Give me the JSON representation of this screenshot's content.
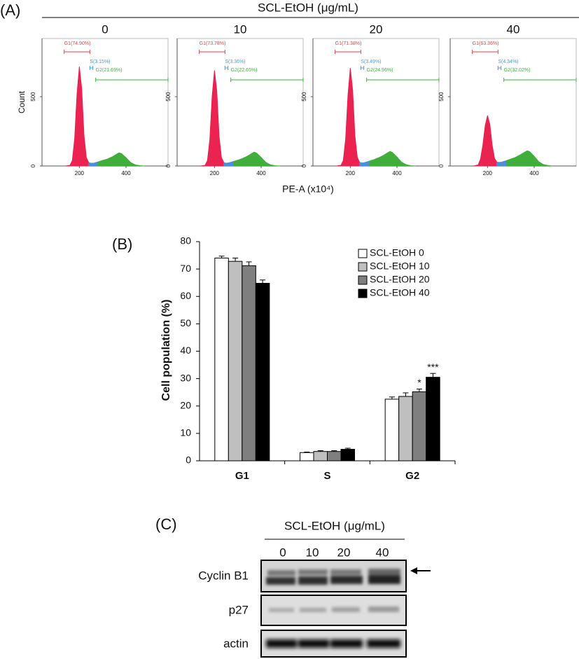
{
  "panel_labels": [
    "(A)",
    "(B)",
    "(C)"
  ],
  "panel_a": {
    "title": "SCL-EtOH (μg/mL)",
    "xlabel": "PE-A (x10⁴)"
  },
  "chart_data": [
    {
      "type": "area",
      "title": "0",
      "ylabel": "Count",
      "x": [
        140,
        160,
        170,
        180,
        190,
        200,
        210,
        220,
        230,
        240,
        250,
        260,
        280,
        300,
        320,
        340,
        360,
        370,
        380,
        400,
        420,
        440,
        460,
        480
      ],
      "xlim": [
        40,
        580
      ],
      "ylim": [
        0,
        920
      ],
      "xticks": [
        200,
        400
      ],
      "yticks": [
        0,
        500
      ],
      "series": [
        {
          "color": "#ea2351",
          "values": [
            0,
            5,
            40,
            200,
            520,
            717,
            560,
            220,
            60,
            25,
            null,
            null,
            null,
            null,
            null,
            null,
            null,
            null,
            null,
            null,
            null,
            null,
            null,
            null
          ]
        },
        {
          "color": "#4b8fd6",
          "values": [
            null,
            null,
            null,
            null,
            null,
            null,
            null,
            null,
            null,
            25,
            20,
            20,
            30,
            null,
            null,
            null,
            null,
            null,
            null,
            null,
            null,
            null,
            null,
            null
          ]
        },
        {
          "color": "#3fae3a",
          "values": [
            null,
            null,
            null,
            null,
            null,
            null,
            null,
            null,
            null,
            null,
            null,
            null,
            30,
            40,
            50,
            65,
            85,
            95,
            90,
            60,
            25,
            8,
            2,
            0
          ]
        }
      ],
      "gates": [
        {
          "label": "G1(74.90%)",
          "range": [
            135,
            245
          ],
          "color": "#e8403f"
        },
        {
          "label": "S(3.15%)",
          "range": [
            245,
            258
          ],
          "color": "#3aa0e0"
        },
        {
          "label": "G2(21.69%)",
          "range": [
            270,
            580
          ],
          "color": "#33bb33"
        }
      ]
    },
    {
      "type": "area",
      "title": "10",
      "x": [
        140,
        160,
        170,
        180,
        190,
        200,
        210,
        220,
        230,
        240,
        250,
        260,
        280,
        300,
        320,
        340,
        360,
        370,
        380,
        400,
        420,
        440,
        460,
        480
      ],
      "xlim": [
        40,
        580
      ],
      "ylim": [
        0,
        920
      ],
      "xticks": [
        200,
        400
      ],
      "yticks": [
        0,
        500
      ],
      "series": [
        {
          "color": "#ea2351",
          "values": [
            0,
            5,
            40,
            190,
            500,
            690,
            540,
            210,
            60,
            25,
            null,
            null,
            null,
            null,
            null,
            null,
            null,
            null,
            null,
            null,
            null,
            null,
            null,
            null
          ]
        },
        {
          "color": "#4b8fd6",
          "values": [
            null,
            null,
            null,
            null,
            null,
            null,
            null,
            null,
            null,
            25,
            20,
            22,
            32,
            null,
            null,
            null,
            null,
            null,
            null,
            null,
            null,
            null,
            null,
            null
          ]
        },
        {
          "color": "#3fae3a",
          "values": [
            null,
            null,
            null,
            null,
            null,
            null,
            null,
            null,
            null,
            null,
            null,
            null,
            32,
            42,
            54,
            70,
            90,
            100,
            94,
            62,
            26,
            8,
            2,
            0
          ]
        }
      ],
      "gates": [
        {
          "label": "G1(73.78%)",
          "range": [
            135,
            245
          ],
          "color": "#e8403f"
        },
        {
          "label": "S(3.36%)",
          "range": [
            245,
            258
          ],
          "color": "#3aa0e0"
        },
        {
          "label": "G2(22.65%)",
          "range": [
            270,
            580
          ],
          "color": "#33bb33"
        }
      ]
    },
    {
      "type": "area",
      "title": "20",
      "x": [
        140,
        160,
        170,
        180,
        190,
        200,
        210,
        220,
        230,
        240,
        250,
        260,
        280,
        300,
        320,
        340,
        360,
        370,
        380,
        400,
        420,
        440,
        460,
        480
      ],
      "xlim": [
        40,
        580
      ],
      "ylim": [
        0,
        920
      ],
      "xticks": [
        200,
        400
      ],
      "yticks": [
        0,
        500
      ],
      "series": [
        {
          "color": "#ea2351",
          "values": [
            0,
            5,
            40,
            195,
            510,
            707,
            550,
            215,
            62,
            26,
            null,
            null,
            null,
            null,
            null,
            null,
            null,
            null,
            null,
            null,
            null,
            null,
            null,
            null
          ]
        },
        {
          "color": "#4b8fd6",
          "values": [
            null,
            null,
            null,
            null,
            null,
            null,
            null,
            null,
            null,
            26,
            22,
            24,
            34,
            null,
            null,
            null,
            null,
            null,
            null,
            null,
            null,
            null,
            null,
            null
          ]
        },
        {
          "color": "#3fae3a",
          "values": [
            null,
            null,
            null,
            null,
            null,
            null,
            null,
            null,
            null,
            null,
            null,
            null,
            34,
            45,
            58,
            74,
            95,
            105,
            98,
            65,
            27,
            9,
            2,
            0
          ]
        }
      ],
      "gates": [
        {
          "label": "G1(71.38%)",
          "range": [
            135,
            245
          ],
          "color": "#e8403f"
        },
        {
          "label": "S(3.49%)",
          "range": [
            245,
            258
          ],
          "color": "#3aa0e0"
        },
        {
          "label": "G2(24.96%)",
          "range": [
            270,
            580
          ],
          "color": "#33bb33"
        }
      ]
    },
    {
      "type": "area",
      "title": "40",
      "x": [
        140,
        160,
        170,
        180,
        190,
        200,
        210,
        220,
        230,
        240,
        250,
        260,
        280,
        300,
        320,
        340,
        360,
        370,
        380,
        400,
        420,
        440,
        460,
        480
      ],
      "xlim": [
        40,
        580
      ],
      "ylim": [
        0,
        920
      ],
      "xticks": [
        200,
        400
      ],
      "yticks": [
        0,
        500
      ],
      "series": [
        {
          "color": "#ea2351",
          "values": [
            0,
            8,
            50,
            150,
            290,
            364,
            300,
            150,
            55,
            28,
            null,
            null,
            null,
            null,
            null,
            null,
            null,
            null,
            null,
            null,
            null,
            null,
            null,
            null
          ]
        },
        {
          "color": "#4b8fd6",
          "values": [
            null,
            null,
            null,
            null,
            null,
            null,
            null,
            null,
            null,
            28,
            26,
            28,
            38,
            null,
            null,
            null,
            null,
            null,
            null,
            null,
            null,
            null,
            null,
            null
          ]
        },
        {
          "color": "#3fae3a",
          "values": [
            null,
            null,
            null,
            null,
            null,
            null,
            null,
            null,
            null,
            null,
            null,
            null,
            38,
            50,
            62,
            80,
            100,
            110,
            104,
            70,
            30,
            10,
            3,
            0
          ]
        }
      ],
      "gates": [
        {
          "label": "G1(63.36%)",
          "range": [
            135,
            245
          ],
          "color": "#e8403f"
        },
        {
          "label": "S(4.34%)",
          "range": [
            245,
            258
          ],
          "color": "#3aa0e0"
        },
        {
          "label": "G2(32.02%)",
          "range": [
            270,
            580
          ],
          "color": "#33bb33"
        }
      ]
    },
    {
      "type": "bar",
      "ylabel": "Cell population (%)",
      "categories": [
        "G1",
        "S",
        "G2"
      ],
      "ylim": [
        0,
        80
      ],
      "yticks": [
        0,
        10,
        20,
        30,
        40,
        50,
        60,
        70,
        80
      ],
      "legend": "upper right",
      "series": [
        {
          "name": "SCL-EtOH 0",
          "color": "#ffffff",
          "values": [
            74,
            3,
            22.5
          ],
          "errors": [
            0.7,
            0.2,
            0.8
          ]
        },
        {
          "name": "SCL-EtOH 10",
          "color": "#bfbfbf",
          "values": [
            72.8,
            3.4,
            23.5
          ],
          "errors": [
            1.2,
            0.3,
            1.3
          ]
        },
        {
          "name": "SCL-EtOH 20",
          "color": "#7f7f7f",
          "values": [
            71.2,
            3.4,
            25.2
          ],
          "errors": [
            1.4,
            0.3,
            1.0
          ],
          "labels": [
            null,
            null,
            "*"
          ]
        },
        {
          "name": "SCL-EtOH 40",
          "color": "#000000",
          "values": [
            64.8,
            4.2,
            30.5
          ],
          "errors": [
            1.2,
            0.4,
            1.4
          ],
          "labels": [
            null,
            null,
            "***"
          ]
        }
      ]
    }
  ],
  "blot": {
    "title": "SCL-EtOH (μg/mL)",
    "lanes": [
      "0",
      "10",
      "20",
      "40"
    ],
    "rows": [
      "Cyclin B1",
      "p27",
      "actin"
    ]
  }
}
